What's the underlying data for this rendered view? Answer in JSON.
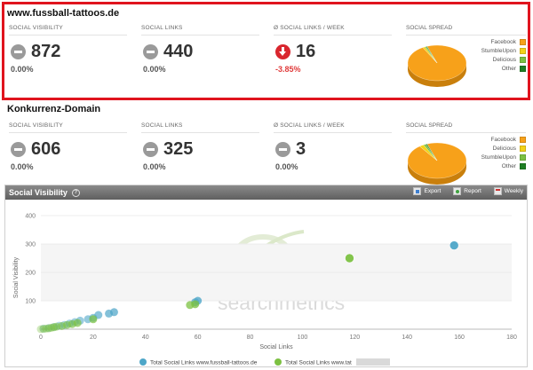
{
  "sections": [
    {
      "domain": "www.fussball-tattoos.de",
      "metrics": [
        {
          "label": "SOCIAL VISIBILITY",
          "value": "872",
          "pct": "0.00%",
          "trend": "neutral"
        },
        {
          "label": "SOCIAL LINKS",
          "value": "440",
          "pct": "0.00%",
          "trend": "neutral"
        },
        {
          "label": "Ø SOCIAL LINKS / WEEK",
          "value": "16",
          "pct": "-3.85%",
          "trend": "down"
        }
      ],
      "spread": {
        "label": "SOCIAL SPREAD",
        "legend": [
          {
            "name": "Facebook",
            "color": "#f7a11a"
          },
          {
            "name": "StumbleUpon",
            "color": "#f3d219"
          },
          {
            "name": "Delicious",
            "color": "#7cc142"
          },
          {
            "name": "Other",
            "color": "#1f7f24"
          }
        ],
        "shares": [
          0.975,
          0.012,
          0.008,
          0.005
        ]
      }
    },
    {
      "domain": "Konkurrenz-Domain",
      "metrics": [
        {
          "label": "SOCIAL VISIBILITY",
          "value": "606",
          "pct": "0.00%",
          "trend": "neutral"
        },
        {
          "label": "SOCIAL LINKS",
          "value": "325",
          "pct": "0.00%",
          "trend": "neutral"
        },
        {
          "label": "Ø SOCIAL LINKS / WEEK",
          "value": "3",
          "pct": "0.00%",
          "trend": "neutral"
        }
      ],
      "spread": {
        "label": "SOCIAL SPREAD",
        "legend": [
          {
            "name": "Facebook",
            "color": "#f7a11a"
          },
          {
            "name": "Delicious",
            "color": "#f3d219"
          },
          {
            "name": "StumbleUpon",
            "color": "#7cc142"
          },
          {
            "name": "Other",
            "color": "#1f7f24"
          }
        ],
        "shares": [
          0.955,
          0.025,
          0.013,
          0.007
        ]
      }
    }
  ],
  "panel": {
    "title": "Social Visibility",
    "help_icon": "question-icon",
    "actions": [
      {
        "label": "Export",
        "icon": "export-icon"
      },
      {
        "label": "Report",
        "icon": "report-icon"
      },
      {
        "label": "Weekly",
        "icon": "calendar-icon"
      }
    ],
    "watermark": "searchmetrics"
  },
  "chart_data": {
    "type": "scatter",
    "xlabel": "Social Links",
    "ylabel": "Social Visibility",
    "xlim": [
      0,
      180
    ],
    "ylim": [
      0,
      400
    ],
    "xticks": [
      "0",
      "20",
      "40",
      "60",
      "80",
      "100",
      "120",
      "140",
      "160",
      "180"
    ],
    "yticks": [
      "100",
      "200",
      "300",
      "400"
    ],
    "series": [
      {
        "name": "Total Social Links www.fussball-tattoos.de",
        "color": "#4ea6c8",
        "points": [
          [
            1,
            2
          ],
          [
            3,
            4
          ],
          [
            5,
            8
          ],
          [
            7,
            12
          ],
          [
            9,
            15
          ],
          [
            11,
            20
          ],
          [
            13,
            25
          ],
          [
            15,
            30
          ],
          [
            18,
            35
          ],
          [
            20,
            40
          ],
          [
            22,
            50
          ],
          [
            26,
            55
          ],
          [
            28,
            60
          ],
          [
            59,
            95
          ],
          [
            60,
            100
          ],
          [
            158,
            295
          ]
        ]
      },
      {
        "name": "Total Social Links www.tat",
        "color": "#7cc142",
        "points": [
          [
            0,
            0
          ],
          [
            1,
            1
          ],
          [
            2,
            2
          ],
          [
            3,
            3
          ],
          [
            4,
            5
          ],
          [
            5,
            7
          ],
          [
            6,
            9
          ],
          [
            8,
            11
          ],
          [
            10,
            15
          ],
          [
            12,
            18
          ],
          [
            14,
            22
          ],
          [
            20,
            35
          ],
          [
            57,
            85
          ],
          [
            59,
            88
          ],
          [
            118,
            250
          ]
        ]
      }
    ]
  }
}
